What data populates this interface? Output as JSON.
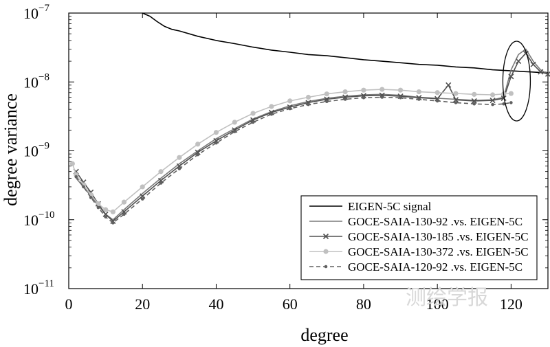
{
  "chart_data": {
    "type": "line",
    "xlabel": "degree",
    "ylabel": "degree variance",
    "xlim": [
      0,
      130
    ],
    "ylim": [
      1e-11,
      1e-07
    ],
    "yscale": "log",
    "x_ticks": [
      0,
      20,
      40,
      60,
      80,
      100,
      120
    ],
    "x_tick_labels": [
      "0",
      "20",
      "40",
      "60",
      "80",
      "100",
      "120"
    ],
    "y_ticks": [
      1e-11,
      1e-10,
      1e-09,
      1e-08,
      1e-07
    ],
    "y_tick_labels": [
      {
        "base": "10",
        "exp": "−11"
      },
      {
        "base": "10",
        "exp": "−10"
      },
      {
        "base": "10",
        "exp": "−9"
      },
      {
        "base": "10",
        "exp": "−8"
      },
      {
        "base": "10",
        "exp": "−7"
      }
    ],
    "legend_position": "lower-right",
    "grid": false,
    "annotation": "ellipse around degrees 118–125",
    "watermark": "测绘学报",
    "series": [
      {
        "name": "EIGEN-5C signal",
        "color": "#000000",
        "style": "solid",
        "x": [
          20,
          22,
          24,
          26,
          28,
          30,
          35,
          40,
          45,
          50,
          55,
          60,
          65,
          70,
          75,
          80,
          85,
          90,
          95,
          100,
          105,
          110,
          115,
          120,
          125,
          130
        ],
        "y": [
          1e-07,
          9e-08,
          7.5e-08,
          6.4e-08,
          5.8e-08,
          5.5e-08,
          4.6e-08,
          4e-08,
          3.6e-08,
          3.2e-08,
          2.9e-08,
          2.7e-08,
          2.5e-08,
          2.4e-08,
          2.25e-08,
          2.1e-08,
          2e-08,
          1.9e-08,
          1.8e-08,
          1.75e-08,
          1.65e-08,
          1.6e-08,
          1.5e-08,
          1.45e-08,
          1.4e-08,
          1.35e-08
        ]
      },
      {
        "name": "GOCE-SAIA-130-92 .vs. EIGEN-5C",
        "color": "#7a7a7a",
        "style": "solid",
        "x": [
          2,
          4,
          6,
          8,
          10,
          12,
          15,
          20,
          25,
          30,
          35,
          40,
          45,
          50,
          55,
          60,
          65,
          70,
          75,
          80,
          85,
          90,
          95,
          100,
          105,
          110,
          115,
          118,
          120,
          122,
          124,
          126,
          128,
          130
        ],
        "y": [
          4e-10,
          3e-10,
          2.2e-10,
          1.6e-10,
          1.2e-10,
          1e-10,
          1.4e-10,
          2.4e-10,
          4e-10,
          6.5e-10,
          1e-09,
          1.5e-09,
          2.1e-09,
          2.9e-09,
          3.7e-09,
          4.5e-09,
          5.2e-09,
          5.8e-09,
          6.2e-09,
          6.5e-09,
          6.6e-09,
          6.4e-09,
          6e-09,
          5.8e-09,
          5.6e-09,
          5.4e-09,
          5.5e-09,
          6e-09,
          1.5e-08,
          2.5e-08,
          3e-08,
          2e-08,
          1.5e-08,
          1.3e-08
        ]
      },
      {
        "name": "GOCE-SAIA-130-185 .vs. EIGEN-5C",
        "color": "#505050",
        "style": "solid-x",
        "x": [
          2,
          4,
          6,
          8,
          10,
          12,
          15,
          20,
          25,
          30,
          35,
          40,
          45,
          50,
          55,
          60,
          65,
          70,
          75,
          80,
          85,
          90,
          95,
          100,
          103,
          105,
          110,
          115,
          118,
          120,
          122,
          124,
          126,
          128,
          130
        ],
        "y": [
          5e-10,
          3.5e-10,
          2.5e-10,
          1.7e-10,
          1.2e-10,
          9.5e-11,
          1.3e-10,
          2.2e-10,
          3.7e-10,
          6e-10,
          9.5e-10,
          1.4e-09,
          2e-09,
          2.8e-09,
          3.6e-09,
          4.3e-09,
          5e-09,
          5.6e-09,
          6e-09,
          6.3e-09,
          6.4e-09,
          6.2e-09,
          5.9e-09,
          5.7e-09,
          9e-09,
          5.5e-09,
          5.3e-09,
          5.4e-09,
          5.8e-09,
          1.2e-08,
          2e-08,
          2.6e-08,
          1.8e-08,
          1.4e-08,
          1.3e-08
        ]
      },
      {
        "name": "GOCE-SAIA-130-372 .vs. EIGEN-5C",
        "color": "#c0c0c0",
        "style": "solid-dot",
        "x": [
          1,
          2,
          4,
          6,
          8,
          10,
          12,
          15,
          20,
          25,
          30,
          35,
          40,
          45,
          50,
          55,
          60,
          65,
          70,
          75,
          80,
          85,
          90,
          95,
          100,
          105,
          110,
          115,
          118,
          120
        ],
        "y": [
          6.5e-10,
          4.5e-10,
          3.2e-10,
          2.3e-10,
          1.7e-10,
          1.4e-10,
          1.3e-10,
          1.8e-10,
          3e-10,
          5e-10,
          8e-10,
          1.25e-09,
          1.85e-09,
          2.6e-09,
          3.5e-09,
          4.4e-09,
          5.3e-09,
          6e-09,
          6.7e-09,
          7.2e-09,
          7.6e-09,
          7.8e-09,
          7.6e-09,
          7.2e-09,
          7e-09,
          6.8e-09,
          6.6e-09,
          6.5e-09,
          6.7e-09,
          6.8e-09
        ]
      },
      {
        "name": "GOCE-SAIA-120-92 .vs. EIGEN-5C",
        "color": "#606060",
        "style": "dashed-dot",
        "x": [
          2,
          4,
          6,
          8,
          10,
          12,
          15,
          20,
          25,
          30,
          35,
          40,
          45,
          50,
          55,
          60,
          65,
          70,
          75,
          80,
          85,
          90,
          95,
          100,
          105,
          110,
          115,
          118,
          120
        ],
        "y": [
          4.2e-10,
          3e-10,
          2.1e-10,
          1.5e-10,
          1.1e-10,
          9e-11,
          1.2e-10,
          2e-10,
          3.4e-10,
          5.5e-10,
          8.8e-10,
          1.3e-09,
          1.9e-09,
          2.6e-09,
          3.4e-09,
          4.1e-09,
          4.7e-09,
          5.2e-09,
          5.6e-09,
          5.9e-09,
          6e-09,
          5.9e-09,
          5.6e-09,
          5.3e-09,
          5e-09,
          4.8e-09,
          4.7e-09,
          4.8e-09,
          5e-09
        ]
      }
    ]
  }
}
